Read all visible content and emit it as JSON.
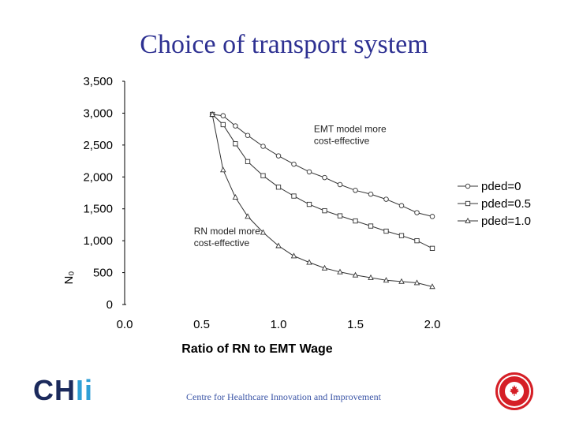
{
  "slide": {
    "title": "Choice of transport system",
    "footer": "Centre for Healthcare Innovation and Improvement",
    "logo_left": {
      "part1": "CH",
      "part2": "Ii"
    },
    "seal_icon": "red-circular-seal-with-maple-leaf"
  },
  "chart_data": {
    "type": "line",
    "title": "",
    "xlabel": "Ratio of RN to EMT Wage",
    "ylabel": "N₀",
    "xlim": [
      0.0,
      2.0
    ],
    "ylim": [
      0,
      3500
    ],
    "x_ticks": [
      "0.0",
      "0.5",
      "1.0",
      "1.5",
      "2.0"
    ],
    "y_ticks": [
      "0",
      "500",
      "1,000",
      "1,500",
      "2,000",
      "2,500",
      "3,000",
      "3,500"
    ],
    "grid": false,
    "legend_position": "right",
    "series": [
      {
        "name": "pded=0",
        "marker": "circle",
        "x": [
          0.57,
          0.64,
          0.72,
          0.8,
          0.9,
          1.0,
          1.1,
          1.2,
          1.3,
          1.4,
          1.5,
          1.6,
          1.7,
          1.8,
          1.9,
          2.0
        ],
        "y": [
          2980,
          2960,
          2800,
          2650,
          2480,
          2330,
          2200,
          2080,
          1990,
          1880,
          1790,
          1730,
          1650,
          1550,
          1440,
          1380
        ]
      },
      {
        "name": "pded=0.5",
        "marker": "square",
        "x": [
          0.57,
          0.64,
          0.72,
          0.8,
          0.9,
          1.0,
          1.1,
          1.2,
          1.3,
          1.4,
          1.5,
          1.6,
          1.7,
          1.8,
          1.9,
          2.0
        ],
        "y": [
          2980,
          2820,
          2520,
          2240,
          2020,
          1840,
          1700,
          1570,
          1470,
          1390,
          1310,
          1230,
          1150,
          1080,
          1000,
          880
        ]
      },
      {
        "name": "pded=1.0",
        "marker": "triangle",
        "x": [
          0.57,
          0.64,
          0.72,
          0.8,
          0.9,
          1.0,
          1.1,
          1.2,
          1.3,
          1.4,
          1.5,
          1.6,
          1.7,
          1.8,
          1.9,
          2.0
        ],
        "y": [
          2980,
          2110,
          1680,
          1380,
          1130,
          920,
          760,
          660,
          570,
          510,
          460,
          420,
          380,
          360,
          340,
          280
        ]
      }
    ],
    "annotations": [
      {
        "line1": "EMT model more",
        "line2": "cost-effective",
        "x": 1.23,
        "y": 2700
      },
      {
        "line1": "RN model more",
        "line2": "cost-effective",
        "x": 0.45,
        "y": 1100
      }
    ]
  }
}
